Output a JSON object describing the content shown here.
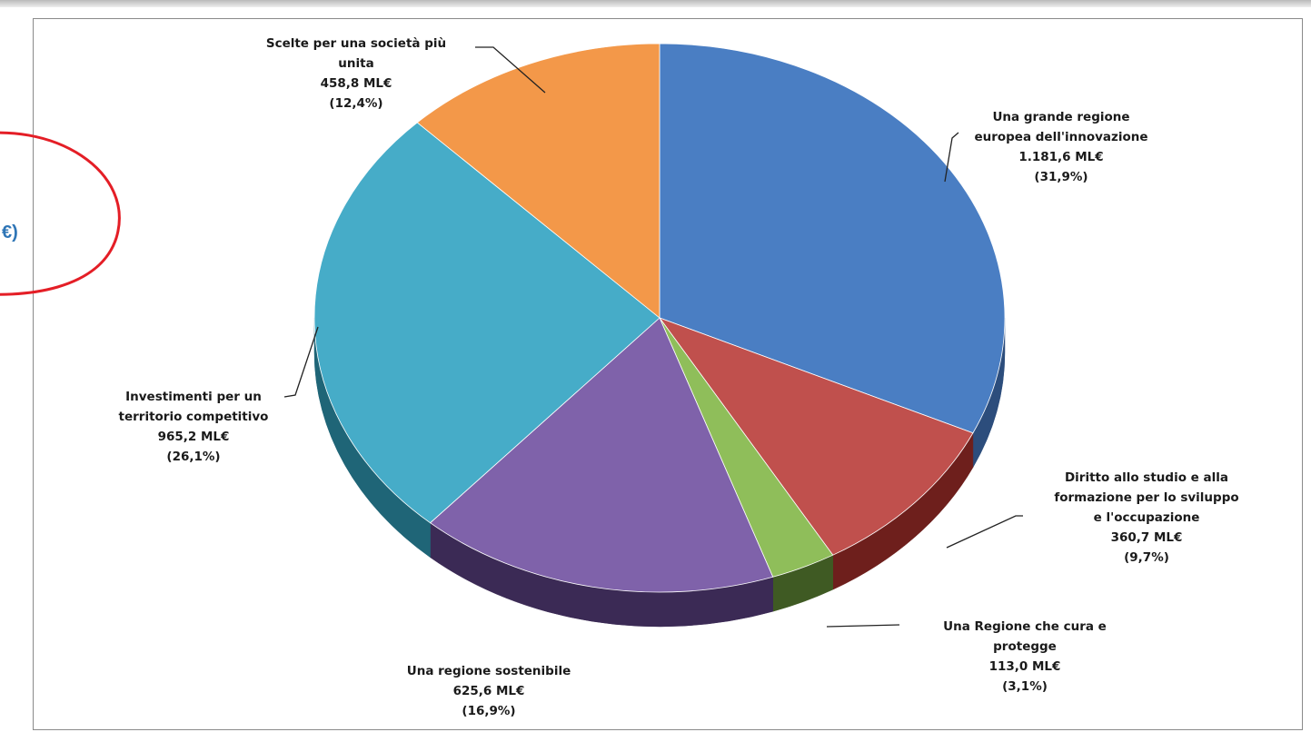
{
  "chart_data": {
    "type": "pie",
    "title": "",
    "series": [
      {
        "name": "Una grande regione europea dell'innovazione",
        "value": 1181.6,
        "value_label": "1.181,6 ML€",
        "pct_label": "(31,9%)",
        "label_lines": [
          "Una grande regione",
          "europea dell'innovazione"
        ],
        "color": "#4a7ec3",
        "dark": "#2c4d7c"
      },
      {
        "name": "Diritto allo studio e alla formazione per lo sviluppo e l'occupazione",
        "value": 360.7,
        "value_label": "360,7 ML€",
        "pct_label": "(9,7%)",
        "label_lines": [
          "Diritto allo studio e alla",
          "formazione per lo sviluppo",
          "e l'occupazione"
        ],
        "color": "#c0504d",
        "dark": "#6e1f1c"
      },
      {
        "name": "Una Regione che cura e protegge",
        "value": 113.0,
        "value_label": "113,0 ML€",
        "pct_label": "(3,1%)",
        "label_lines": [
          "Una Regione che cura e",
          "protegge"
        ],
        "color": "#8fbe5a",
        "dark": "#3f5a23"
      },
      {
        "name": "Una regione sostenibile",
        "value": 625.6,
        "value_label": "625,6 ML€",
        "pct_label": "(16,9%)",
        "label_lines": [
          "Una regione sostenibile"
        ],
        "color": "#7f62aa",
        "dark": "#3b2a55"
      },
      {
        "name": "Investimenti per un territorio competitivo",
        "value": 965.2,
        "value_label": "965,2 ML€",
        "pct_label": "(26,1%)",
        "label_lines": [
          "Investimenti per un",
          "territorio competitivo"
        ],
        "color": "#46acc8",
        "dark": "#1f6577"
      },
      {
        "name": "Scelte per una società più unita",
        "value": 458.8,
        "value_label": "458,8 ML€",
        "pct_label": "(12,4%)",
        "label_lines": [
          "Scelte per una società più",
          "unita"
        ],
        "color": "#f39849",
        "dark": "#9a5419"
      }
    ]
  },
  "annotation": {
    "text": "€)",
    "color": "#e41e26"
  }
}
